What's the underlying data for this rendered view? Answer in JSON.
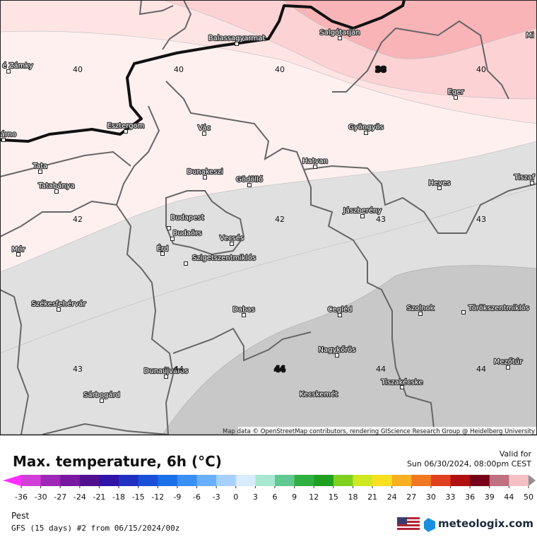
{
  "map": {
    "cities": [
      "é Zámky",
      "Balassagyarmat",
      "Salgótarján",
      "Mi",
      "Eger",
      "Esztergom",
      "árno",
      "Vác",
      "Gyöngyös",
      "Tata",
      "Dunakeszi",
      "Gödöllő",
      "Hatvan",
      "Heves",
      "Tiszaf",
      "Tatabánya",
      "Jászberény",
      "Budapest",
      "Budaörs",
      "Vecsés",
      "Mór",
      "Érd",
      "Szigetszentmiklós",
      "Székesfehérvár",
      "Dabas",
      "Cegléd",
      "Szolnok",
      "Törökszentmiklós",
      "Nagykőrös",
      "Mezőtúr",
      "Dunaújváros",
      "Tiszakécske",
      "Kecskemét",
      "Sárbogárd"
    ],
    "temperatures": [
      [
        40,
        40,
        40,
        38,
        40
      ],
      [
        42,
        null,
        42,
        43,
        43
      ],
      [
        43,
        44,
        44,
        44,
        44
      ]
    ],
    "attribution": "Map data © OpenStreetMap contributors, rendering GIScience Research Group @ Heidelberg University"
  },
  "footer": {
    "title": "Max. temperature, 6h (°C)",
    "valid_label": "Valid for",
    "valid_time": "Sun 06/30/2024, 08:00pm CEST",
    "region": "Pest",
    "model": "GFS (15 days) #2 from 06/15/2024/00z",
    "logo": "meteologix.com"
  },
  "colorbar": {
    "ticks": [
      -36,
      -30,
      -27,
      -24,
      -21,
      -18,
      -15,
      -12,
      -9,
      -6,
      -3,
      0,
      3,
      6,
      9,
      12,
      15,
      18,
      21,
      24,
      27,
      30,
      33,
      36,
      39,
      44,
      50
    ],
    "colors": [
      "#ff30ff",
      "#d040d8",
      "#a028b8",
      "#7818a0",
      "#501090",
      "#3014a8",
      "#2030c0",
      "#1a50d8",
      "#1a70e8",
      "#3890f4",
      "#68b0fc",
      "#a8d0ff",
      "#d8ecff",
      "#a8e8d0",
      "#60c890",
      "#30b040",
      "#20a020",
      "#80d020",
      "#d0e820",
      "#f8e020",
      "#f8b020",
      "#f07820",
      "#e04020",
      "#b01010",
      "#780018",
      "#c07080",
      "#f4c0c4",
      "#c8c8c8",
      "#909090"
    ]
  }
}
